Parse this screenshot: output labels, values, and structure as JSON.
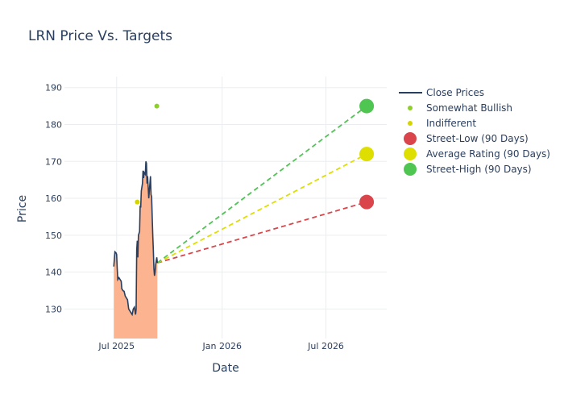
{
  "chart_data": {
    "type": "line",
    "title": "LRN Price Vs. Targets",
    "xlabel": "Date",
    "ylabel": "Price",
    "xlim": [
      "2025-04-01",
      "2026-10-15"
    ],
    "ylim": [
      122,
      193
    ],
    "y_ticks": [
      130,
      140,
      150,
      160,
      170,
      180,
      190
    ],
    "x_ticks": [
      {
        "date": "2025-07-01",
        "label": "Jul 2025"
      },
      {
        "date": "2026-01-01",
        "label": "Jan 2026"
      },
      {
        "date": "2026-07-01",
        "label": "Jul 2026"
      }
    ],
    "grid": true,
    "legend_position": "right",
    "colors": {
      "close": "#2a3f5f",
      "fill": "#fbb48f",
      "somewhat_bullish": "#8fce2c",
      "indifferent": "#d4d400",
      "street_low": "#d9454b",
      "average": "#dede00",
      "street_high": "#4fc552"
    },
    "series": [
      {
        "name": "Close Prices",
        "points": [
          [
            "2025-06-26",
            141.5
          ],
          [
            "2025-06-28",
            145.5
          ],
          [
            "2025-06-30",
            145.2
          ],
          [
            "2025-07-01",
            144.8
          ],
          [
            "2025-07-02",
            141.0
          ],
          [
            "2025-07-03",
            138.0
          ],
          [
            "2025-07-05",
            138.5
          ],
          [
            "2025-07-07",
            138.0
          ],
          [
            "2025-07-09",
            137.5
          ],
          [
            "2025-07-10",
            135.5
          ],
          [
            "2025-07-12",
            135.0
          ],
          [
            "2025-07-14",
            134.8
          ],
          [
            "2025-07-16",
            133.5
          ],
          [
            "2025-07-18",
            133.0
          ],
          [
            "2025-07-20",
            132.5
          ],
          [
            "2025-07-22",
            130.0
          ],
          [
            "2025-07-24",
            129.5
          ],
          [
            "2025-07-26",
            129.0
          ],
          [
            "2025-07-28",
            128.5
          ],
          [
            "2025-07-30",
            130.0
          ],
          [
            "2025-08-01",
            130.5
          ],
          [
            "2025-08-03",
            128.5
          ],
          [
            "2025-08-04",
            130.0
          ],
          [
            "2025-08-05",
            146.0
          ],
          [
            "2025-08-06",
            148.5
          ],
          [
            "2025-08-07",
            144.0
          ],
          [
            "2025-08-08",
            150.0
          ],
          [
            "2025-08-10",
            151.0
          ],
          [
            "2025-08-11",
            158.0
          ],
          [
            "2025-08-12",
            157.5
          ],
          [
            "2025-08-13",
            162.0
          ],
          [
            "2025-08-15",
            164.0
          ],
          [
            "2025-08-16",
            167.5
          ],
          [
            "2025-08-17",
            165.5
          ],
          [
            "2025-08-18",
            167.0
          ],
          [
            "2025-08-20",
            166.5
          ],
          [
            "2025-08-21",
            170.0
          ],
          [
            "2025-08-22",
            169.5
          ],
          [
            "2025-08-23",
            164.0
          ],
          [
            "2025-08-24",
            166.0
          ],
          [
            "2025-08-25",
            163.0
          ],
          [
            "2025-08-26",
            160.0
          ],
          [
            "2025-08-27",
            162.0
          ],
          [
            "2025-08-29",
            166.0
          ],
          [
            "2025-08-30",
            161.0
          ],
          [
            "2025-08-31",
            160.5
          ],
          [
            "2025-09-01",
            155.0
          ],
          [
            "2025-09-02",
            150.0
          ],
          [
            "2025-09-03",
            146.0
          ],
          [
            "2025-09-04",
            141.0
          ],
          [
            "2025-09-05",
            139.0
          ],
          [
            "2025-09-06",
            140.0
          ],
          [
            "2025-09-07",
            142.0
          ],
          [
            "2025-09-08",
            143.0
          ],
          [
            "2025-09-09",
            144.0
          ],
          [
            "2025-09-10",
            142.5
          ]
        ]
      },
      {
        "name": "Somewhat Bullish",
        "points": [
          [
            "2025-09-09",
            185
          ]
        ]
      },
      {
        "name": "Indifferent",
        "points": [
          [
            "2025-08-06",
            159
          ]
        ]
      },
      {
        "name": "Street-Low (90 Days)",
        "from": [
          "2025-09-10",
          142.5
        ],
        "to": [
          "2026-09-10",
          159
        ]
      },
      {
        "name": "Average Rating (90 Days)",
        "from": [
          "2025-09-10",
          142.5
        ],
        "to": [
          "2026-09-10",
          172
        ]
      },
      {
        "name": "Street-High (90 Days)",
        "from": [
          "2025-09-10",
          142.5
        ],
        "to": [
          "2026-09-10",
          185
        ]
      }
    ]
  }
}
